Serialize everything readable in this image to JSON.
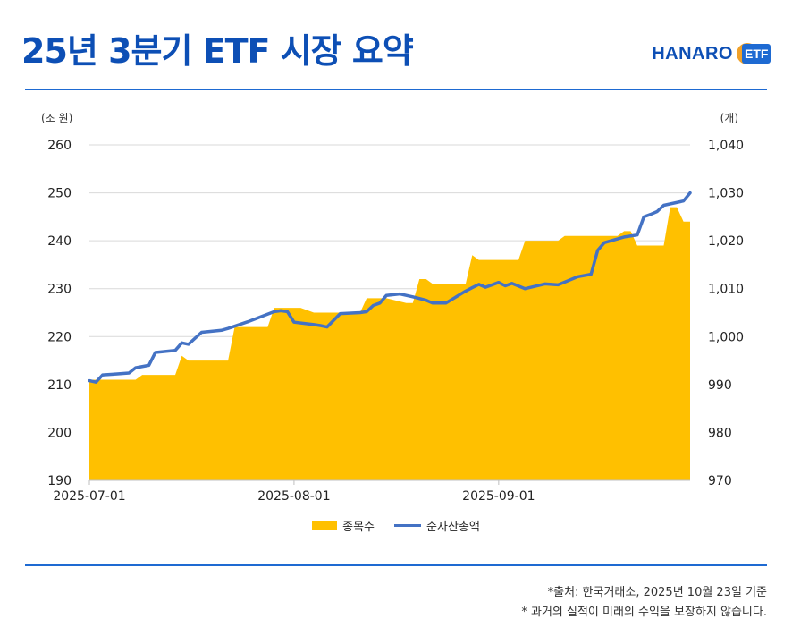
{
  "header": {
    "title": "25년 3분기 ETF 시장 요약",
    "logo_text": "HANARO",
    "logo_badge": "ETF"
  },
  "colors": {
    "title": "#0d4fb5",
    "rule": "#1e6ad2",
    "area": "#ffc000",
    "line": "#4472c4",
    "logo_accent": "#f0a12a"
  },
  "chart_data": {
    "type": "area",
    "left_axis_unit": "(조 원)",
    "right_axis_unit": "(개)",
    "y_left_ticks": [
      "260",
      "250",
      "240",
      "230",
      "220",
      "210",
      "200",
      "190"
    ],
    "y_right_ticks": [
      "1,040",
      "1,030",
      "1,020",
      "1,010",
      "1,000",
      "990",
      "980",
      "970"
    ],
    "x_tick_labels": [
      "2025-07-01",
      "2025-08-01",
      "2025-09-01"
    ],
    "y_left_range": [
      190,
      260
    ],
    "y_right_range": [
      970,
      1040
    ],
    "x_range": [
      "2025-07-01",
      "2025-09-30"
    ],
    "grid": true,
    "legend_position": "bottom",
    "series": [
      {
        "name": "종목수",
        "type": "area",
        "axis": "right",
        "x": [
          "2025-07-01",
          "2025-07-02",
          "2025-07-04",
          "2025-07-08",
          "2025-07-09",
          "2025-07-14",
          "2025-07-15",
          "2025-07-16",
          "2025-07-17",
          "2025-07-22",
          "2025-07-23",
          "2025-07-24",
          "2025-07-28",
          "2025-07-29",
          "2025-07-31",
          "2025-08-01",
          "2025-08-02",
          "2025-08-04",
          "2025-08-05",
          "2025-08-07",
          "2025-08-08",
          "2025-08-11",
          "2025-08-12",
          "2025-08-14",
          "2025-08-15",
          "2025-08-18",
          "2025-08-19",
          "2025-08-20",
          "2025-08-21",
          "2025-08-22",
          "2025-08-23",
          "2025-08-27",
          "2025-08-28",
          "2025-08-29",
          "2025-09-04",
          "2025-09-05",
          "2025-09-10",
          "2025-09-11",
          "2025-09-19",
          "2025-09-20",
          "2025-09-21",
          "2025-09-22",
          "2025-09-26",
          "2025-09-27",
          "2025-09-28",
          "2025-09-29",
          "2025-09-30"
        ],
        "values": [
          991,
          991,
          991,
          991,
          992,
          992,
          996,
          995,
          995,
          995,
          1002,
          1002,
          1002,
          1006,
          1006,
          1006,
          1006,
          1005,
          1005,
          1005,
          1005,
          1005,
          1008,
          1008,
          1008,
          1007,
          1007,
          1012,
          1012,
          1011,
          1011,
          1011,
          1017,
          1016,
          1016,
          1020,
          1020,
          1021,
          1021,
          1022,
          1022,
          1019,
          1019,
          1027,
          1027,
          1024,
          1024
        ]
      },
      {
        "name": "순자산총액",
        "type": "line",
        "axis": "left",
        "x": [
          "2025-07-01",
          "2025-07-02",
          "2025-07-03",
          "2025-07-05",
          "2025-07-07",
          "2025-07-08",
          "2025-07-10",
          "2025-07-11",
          "2025-07-14",
          "2025-07-15",
          "2025-07-16",
          "2025-07-18",
          "2025-07-21",
          "2025-07-22",
          "2025-07-25",
          "2025-07-29",
          "2025-07-30",
          "2025-07-31",
          "2025-08-01",
          "2025-08-04",
          "2025-08-05",
          "2025-08-06",
          "2025-08-08",
          "2025-08-11",
          "2025-08-12",
          "2025-08-13",
          "2025-08-14",
          "2025-08-15",
          "2025-08-17",
          "2025-08-19",
          "2025-08-21",
          "2025-08-22",
          "2025-08-24",
          "2025-08-27",
          "2025-08-28",
          "2025-08-29",
          "2025-08-30",
          "2025-09-01",
          "2025-09-02",
          "2025-09-03",
          "2025-09-05",
          "2025-09-08",
          "2025-09-10",
          "2025-09-13",
          "2025-09-15",
          "2025-09-16",
          "2025-09-17",
          "2025-09-20",
          "2025-09-22",
          "2025-09-23",
          "2025-09-24",
          "2025-09-25",
          "2025-09-26",
          "2025-09-29",
          "2025-09-30"
        ],
        "values": [
          210.8,
          210.5,
          212,
          212.2,
          212.4,
          213.5,
          214,
          216.7,
          217.1,
          218.7,
          218.4,
          220.9,
          221.3,
          221.7,
          223.1,
          225.2,
          225.4,
          225.2,
          223,
          222.5,
          222.3,
          222.0,
          224.8,
          225.0,
          225.2,
          226.5,
          227.0,
          228.6,
          228.9,
          228.3,
          227.6,
          227.0,
          227.0,
          229.5,
          230.2,
          230.9,
          230.3,
          231.3,
          230.6,
          231.1,
          230,
          231.0,
          230.8,
          232.5,
          233.0,
          238.0,
          239.6,
          240.8,
          241.2,
          245.0,
          245.5,
          246.1,
          247.4,
          248.3,
          250.0
        ]
      }
    ]
  },
  "footnotes": {
    "source": "*출처: 한국거래소, 2025년 10월 23일 기준",
    "disclaimer": "* 과거의 실적이 미래의 수익을 보장하지 않습니다."
  }
}
